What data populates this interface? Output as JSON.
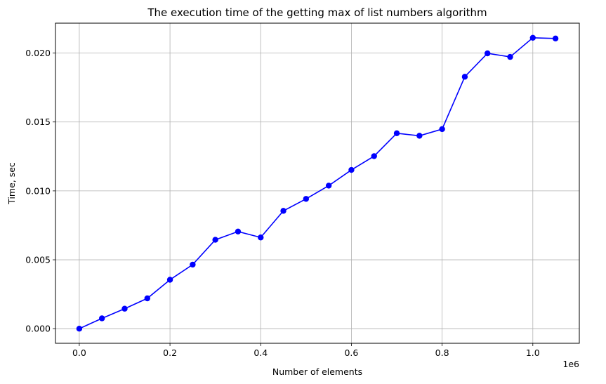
{
  "chart_data": {
    "type": "line",
    "title": "The execution time of the getting max of list numbers algorithm",
    "xlabel": "Number of elements",
    "ylabel": "Time, sec",
    "x_offset_label": "1e6",
    "xlim": [
      -0.0525,
      1.1025
    ],
    "ylim": [
      -0.00106,
      0.02217
    ],
    "x_ticks": [
      0.0,
      0.2,
      0.4,
      0.6,
      0.8,
      1.0
    ],
    "x_tick_labels": [
      "0.0",
      "0.2",
      "0.4",
      "0.6",
      "0.8",
      "1.0"
    ],
    "y_ticks": [
      0.0,
      0.005,
      0.01,
      0.015,
      0.02
    ],
    "y_tick_labels": [
      "0.000",
      "0.005",
      "0.010",
      "0.015",
      "0.020"
    ],
    "grid": true,
    "series": [
      {
        "color": "#0000ff",
        "marker": "circle",
        "x": [
          0.0,
          0.05,
          0.1,
          0.15,
          0.2,
          0.25,
          0.3,
          0.35,
          0.4,
          0.45,
          0.5,
          0.55,
          0.6,
          0.65,
          0.7,
          0.75,
          0.8,
          0.85,
          0.9,
          0.95,
          1.0,
          1.05
        ],
        "y": [
          0.0,
          0.00075,
          0.00145,
          0.0022,
          0.00355,
          0.00465,
          0.00645,
          0.00705,
          0.00662,
          0.00855,
          0.00942,
          0.01038,
          0.01152,
          0.01252,
          0.01418,
          0.014,
          0.01448,
          0.01828,
          0.01998,
          0.01972,
          0.02111,
          0.02106
        ]
      }
    ]
  }
}
